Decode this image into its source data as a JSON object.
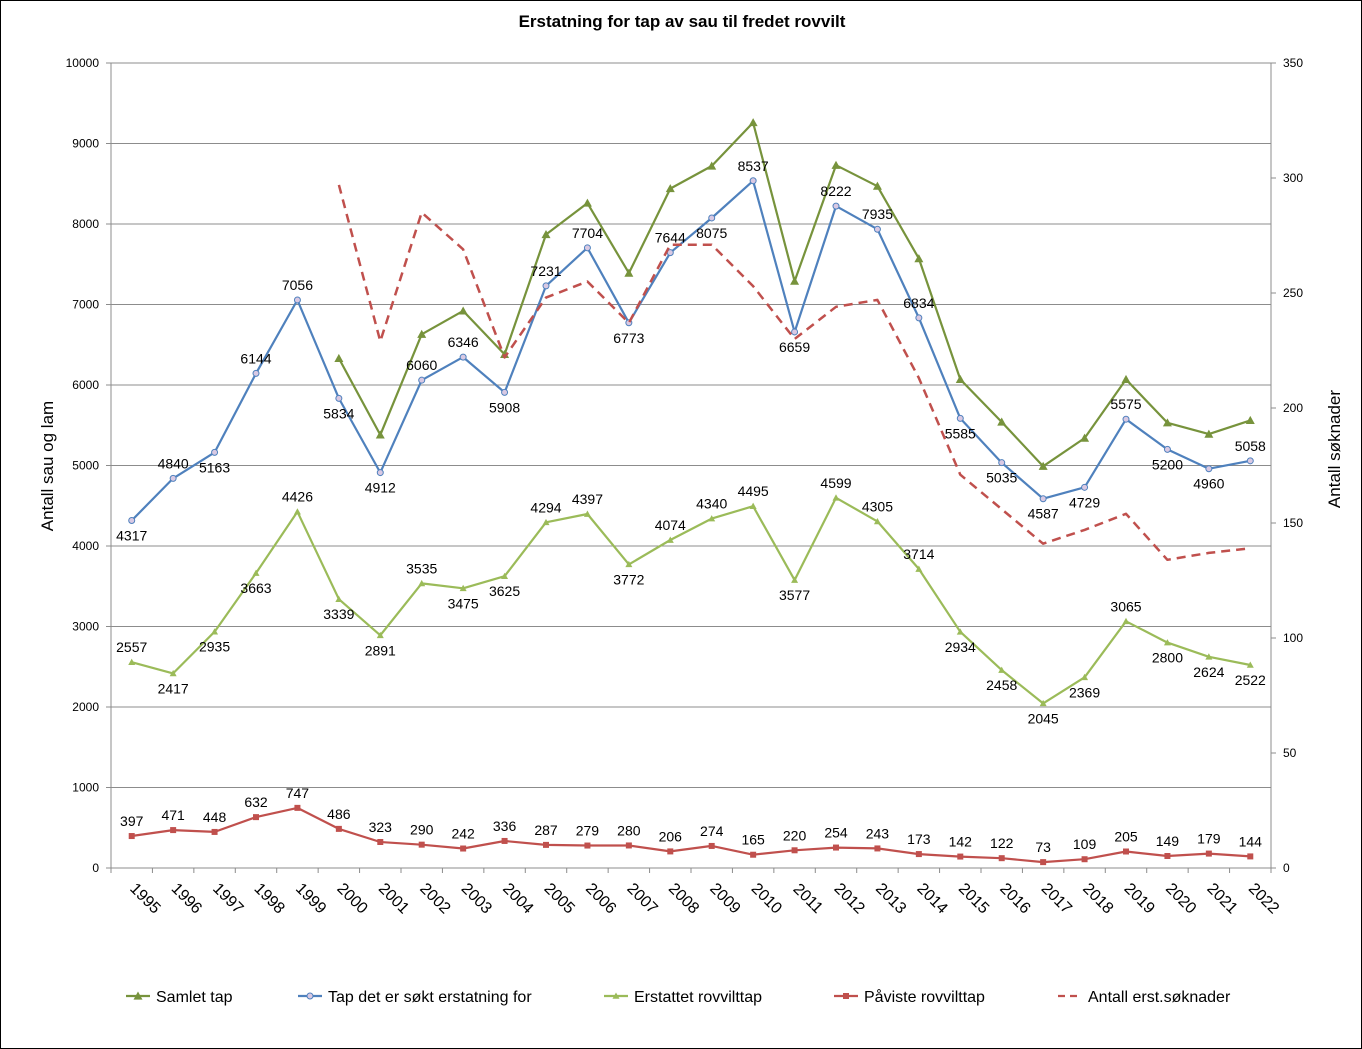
{
  "chart_data": {
    "type": "line",
    "title": "Erstatning for tap av sau til fredet rovvilt",
    "ylabel": "Antall sau og lam",
    "y2label": "Antall søknader",
    "ylim": [
      0,
      10000
    ],
    "y2lim": [
      0,
      350
    ],
    "yticks": [
      0,
      1000,
      2000,
      3000,
      4000,
      5000,
      6000,
      7000,
      8000,
      9000,
      10000
    ],
    "y2ticks": [
      0,
      50,
      100,
      150,
      200,
      250,
      300,
      350
    ],
    "grid": true,
    "legend_position": "bottom",
    "x": [
      "1995",
      "1996",
      "1997",
      "1998",
      "1999",
      "2000",
      "2001",
      "2002",
      "2003",
      "2004",
      "2005",
      "2006",
      "2007",
      "2008",
      "2009",
      "2010",
      "2011",
      "2012",
      "2013",
      "2014",
      "2015",
      "2016",
      "2017",
      "2018",
      "2019",
      "2020",
      "2021",
      "2022"
    ],
    "series": [
      {
        "name": "Samlet tap",
        "axis": "left",
        "color": "#77933c",
        "marker": "triangle",
        "dashed": false,
        "labels": false,
        "values": [
          null,
          null,
          null,
          null,
          null,
          6330,
          5380,
          6630,
          6920,
          6380,
          7870,
          8260,
          7390,
          8440,
          8720,
          9260,
          7290,
          8730,
          8470,
          7570,
          6070,
          5540,
          4990,
          5340,
          6070,
          5530,
          5390,
          5560
        ]
      },
      {
        "name": "Tap det er søkt erstatning for",
        "axis": "left",
        "color": "#4f81bd",
        "marker": "circle",
        "dashed": false,
        "labels": true,
        "values": [
          4317,
          4840,
          5163,
          6144,
          7056,
          5834,
          4912,
          6060,
          6346,
          5908,
          7231,
          7704,
          6773,
          7644,
          8075,
          8537,
          6659,
          8222,
          7935,
          6834,
          5585,
          5035,
          4587,
          4729,
          5575,
          5200,
          4960,
          5058
        ]
      },
      {
        "name": "Erstattet rovvilttap",
        "axis": "left",
        "color": "#9bbb59",
        "marker": "small-triangle",
        "dashed": false,
        "labels": true,
        "values": [
          2557,
          2417,
          2935,
          3663,
          4426,
          3339,
          2891,
          3535,
          3475,
          3625,
          4294,
          4397,
          3772,
          4074,
          4340,
          4495,
          3577,
          4599,
          4305,
          3714,
          2934,
          2458,
          2045,
          2369,
          3065,
          2800,
          2624,
          2522
        ]
      },
      {
        "name": "Påviste rovvilttap",
        "axis": "left",
        "color": "#c0504d",
        "marker": "square",
        "dashed": false,
        "labels": true,
        "values": [
          397,
          471,
          448,
          632,
          747,
          486,
          323,
          290,
          242,
          336,
          287,
          279,
          280,
          206,
          274,
          165,
          220,
          254,
          243,
          173,
          142,
          122,
          73,
          109,
          205,
          149,
          179,
          144
        ]
      },
      {
        "name": "Antall erst.søknader",
        "axis": "right",
        "color": "#c0504d",
        "marker": "none",
        "dashed": true,
        "labels": false,
        "values": [
          null,
          null,
          null,
          null,
          null,
          297,
          229,
          285,
          269,
          222,
          248,
          255,
          237,
          271,
          271,
          253,
          230,
          244,
          247,
          213,
          171,
          156,
          141,
          147,
          154,
          134,
          137,
          139
        ]
      }
    ]
  }
}
